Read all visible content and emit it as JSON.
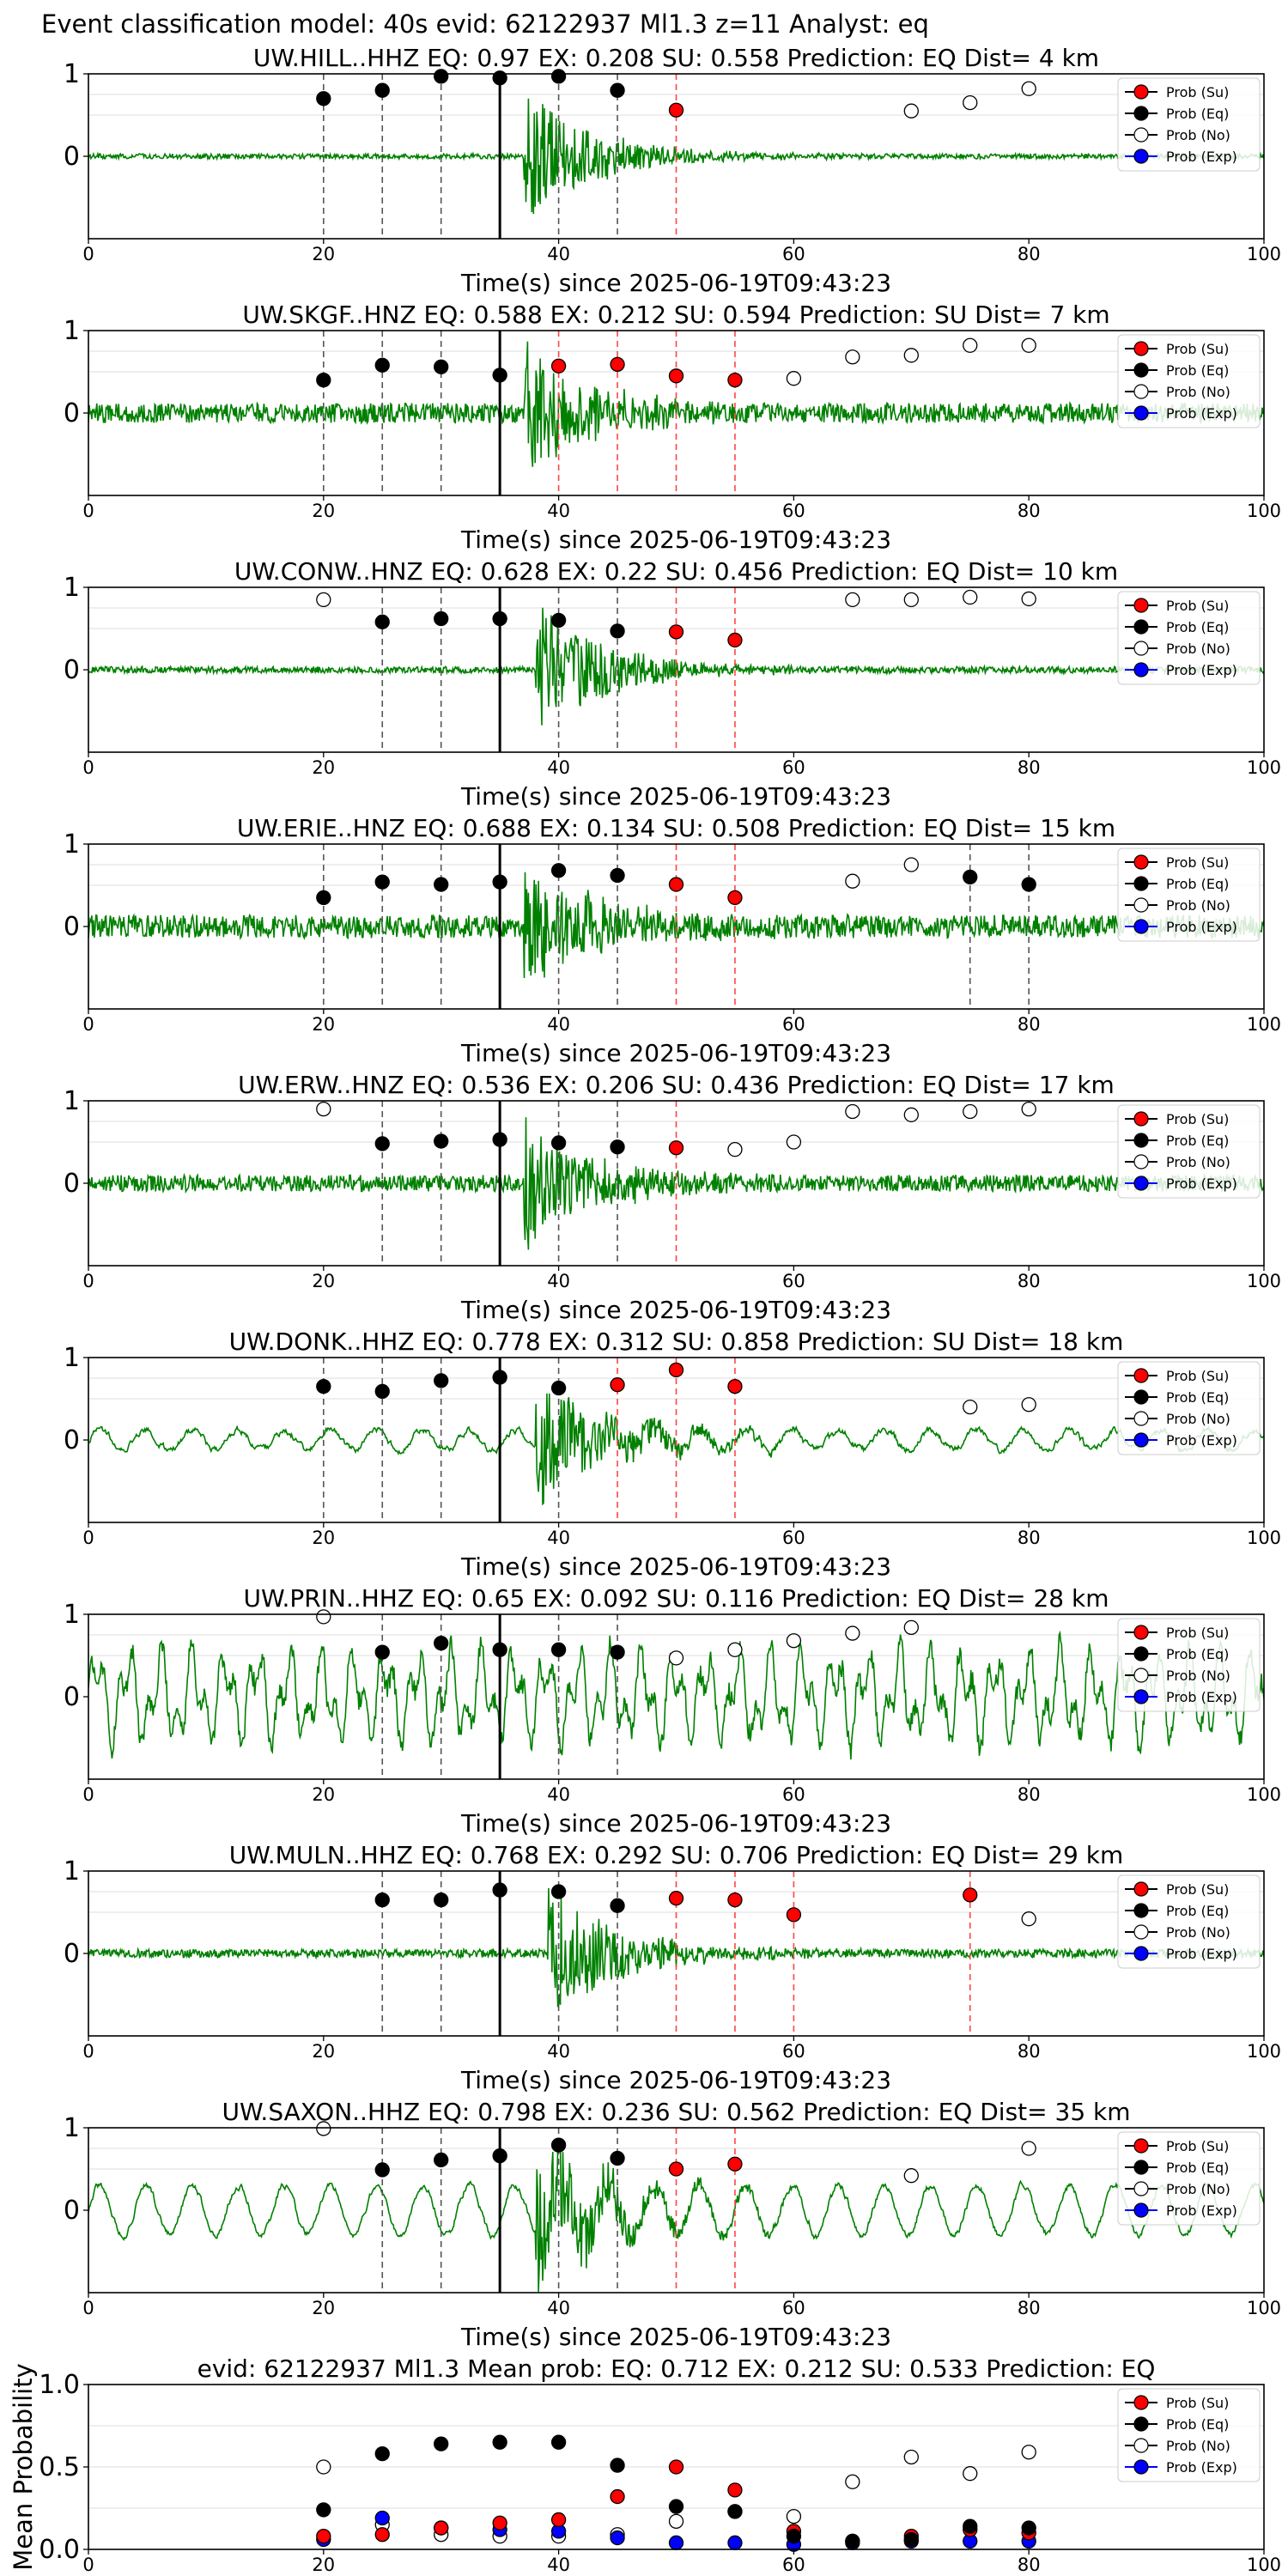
{
  "figure_title": "Event classification model: 40s evid: 62122937 Ml1.3 z=11 Analyst: eq",
  "legend": [
    "Prob (Su)",
    "Prob (Eq)",
    "Prob (No)",
    "Prob (Exp)"
  ],
  "colors": {
    "Su": "#ff0000",
    "Eq": "#000000",
    "No": "#ffffff",
    "Exp": "#0000ff",
    "waveform": "#008000"
  },
  "xlabel": "Time(s) since 2025-06-19T09:43:23",
  "chart_data": [
    {
      "type": "scatter",
      "title": "UW.HILL..HHZ   EQ: 0.97  EX: 0.208  SU: 0.558   Prediction: EQ    Dist= 4 km",
      "xlim": [
        0,
        100
      ],
      "ylim": [
        -1,
        1
      ],
      "xticks": [
        0,
        20,
        40,
        60,
        80,
        100
      ],
      "yticks": [
        0,
        1
      ],
      "waveform": {
        "amplitude": 0.03,
        "style": "quiet-burst",
        "event_start": 37
      },
      "event_line_x": 35,
      "points": {
        "Eq": [
          [
            20,
            0.7
          ],
          [
            25,
            0.8
          ],
          [
            30,
            0.97
          ],
          [
            35,
            0.95
          ],
          [
            40,
            0.97
          ],
          [
            45,
            0.8
          ]
        ],
        "Su": [
          [
            50,
            0.56
          ]
        ],
        "No": [
          [
            70,
            0.55
          ],
          [
            75,
            0.65
          ],
          [
            80,
            0.82
          ]
        ],
        "Exp": []
      },
      "eq_lines": [
        20,
        25,
        30,
        40,
        45
      ],
      "su_lines": [
        50
      ]
    },
    {
      "type": "scatter",
      "title": "UW.SKGF..HNZ   EQ: 0.588  EX: 0.212  SU: 0.594   Prediction: SU    Dist= 7 km",
      "xlim": [
        0,
        100
      ],
      "ylim": [
        -1,
        1
      ],
      "xticks": [
        0,
        20,
        40,
        60,
        80,
        100
      ],
      "yticks": [
        0,
        1
      ],
      "waveform": {
        "amplitude": 0.12,
        "style": "noisy-burst",
        "event_start": 37
      },
      "event_line_x": 35,
      "points": {
        "Eq": [
          [
            20,
            0.4
          ],
          [
            25,
            0.58
          ],
          [
            30,
            0.56
          ],
          [
            35,
            0.46
          ]
        ],
        "Su": [
          [
            40,
            0.57
          ],
          [
            45,
            0.59
          ],
          [
            50,
            0.45
          ],
          [
            55,
            0.4
          ]
        ],
        "No": [
          [
            60,
            0.42
          ],
          [
            65,
            0.68
          ],
          [
            70,
            0.7
          ],
          [
            75,
            0.82
          ],
          [
            80,
            0.82
          ]
        ],
        "Exp": []
      },
      "eq_lines": [
        20,
        25,
        30
      ],
      "su_lines": [
        40,
        45,
        50,
        55
      ]
    },
    {
      "type": "scatter",
      "title": "UW.CONW..HNZ   EQ: 0.628  EX: 0.22  SU: 0.456   Prediction: EQ    Dist= 10 km",
      "xlim": [
        0,
        100
      ],
      "ylim": [
        -1,
        1
      ],
      "xticks": [
        0,
        20,
        40,
        60,
        80,
        100
      ],
      "yticks": [
        0,
        1
      ],
      "waveform": {
        "amplitude": 0.04,
        "style": "quiet-burst",
        "event_start": 38
      },
      "event_line_x": 35,
      "points": {
        "Eq": [
          [
            25,
            0.58
          ],
          [
            30,
            0.62
          ],
          [
            35,
            0.62
          ],
          [
            40,
            0.6
          ],
          [
            45,
            0.47
          ]
        ],
        "Su": [
          [
            50,
            0.46
          ],
          [
            55,
            0.36
          ]
        ],
        "No": [
          [
            20,
            0.85
          ],
          [
            65,
            0.85
          ],
          [
            70,
            0.85
          ],
          [
            75,
            0.88
          ],
          [
            80,
            0.86
          ]
        ],
        "Exp": []
      },
      "eq_lines": [
        25,
        30,
        40,
        45
      ],
      "su_lines": [
        50,
        55
      ]
    },
    {
      "type": "scatter",
      "title": "UW.ERIE..HNZ   EQ: 0.688  EX: 0.134  SU: 0.508   Prediction: EQ    Dist= 15 km",
      "xlim": [
        0,
        100
      ],
      "ylim": [
        -1,
        1
      ],
      "xticks": [
        0,
        20,
        40,
        60,
        80,
        100
      ],
      "yticks": [
        0,
        1
      ],
      "waveform": {
        "amplitude": 0.14,
        "style": "noisy-burst",
        "event_start": 37
      },
      "event_line_x": 35,
      "points": {
        "Eq": [
          [
            20,
            0.35
          ],
          [
            25,
            0.54
          ],
          [
            30,
            0.51
          ],
          [
            35,
            0.54
          ],
          [
            40,
            0.68
          ],
          [
            45,
            0.62
          ],
          [
            75,
            0.6
          ],
          [
            80,
            0.51
          ]
        ],
        "Su": [
          [
            50,
            0.51
          ],
          [
            55,
            0.35
          ]
        ],
        "No": [
          [
            65,
            0.55
          ],
          [
            70,
            0.75
          ]
        ],
        "Exp": []
      },
      "eq_lines": [
        20,
        25,
        30,
        40,
        45,
        75,
        80
      ],
      "su_lines": [
        50,
        55
      ]
    },
    {
      "type": "scatter",
      "title": "UW.ERW..HNZ   EQ: 0.536  EX: 0.206  SU: 0.436   Prediction: EQ    Dist= 17 km",
      "xlim": [
        0,
        100
      ],
      "ylim": [
        -1,
        1
      ],
      "xticks": [
        0,
        20,
        40,
        60,
        80,
        100
      ],
      "yticks": [
        0,
        1
      ],
      "waveform": {
        "amplitude": 0.1,
        "style": "noisy-burst",
        "event_start": 37
      },
      "event_line_x": 35,
      "points": {
        "Eq": [
          [
            25,
            0.48
          ],
          [
            30,
            0.51
          ],
          [
            35,
            0.53
          ],
          [
            40,
            0.49
          ],
          [
            45,
            0.44
          ]
        ],
        "Su": [
          [
            50,
            0.43
          ]
        ],
        "No": [
          [
            20,
            0.9
          ],
          [
            55,
            0.41
          ],
          [
            60,
            0.5
          ],
          [
            65,
            0.87
          ],
          [
            70,
            0.83
          ],
          [
            75,
            0.87
          ],
          [
            80,
            0.9
          ]
        ],
        "Exp": []
      },
      "eq_lines": [
        25,
        30,
        40,
        45
      ],
      "su_lines": [
        50
      ]
    },
    {
      "type": "scatter",
      "title": "UW.DONK..HHZ   EQ: 0.778  EX: 0.312  SU: 0.858   Prediction: SU    Dist= 18 km",
      "xlim": [
        0,
        100
      ],
      "ylim": [
        -1,
        1
      ],
      "xticks": [
        0,
        20,
        40,
        60,
        80,
        100
      ],
      "yticks": [
        0,
        1
      ],
      "waveform": {
        "amplitude": 0.12,
        "style": "wavy-burst",
        "event_start": 38
      },
      "event_line_x": 35,
      "points": {
        "Eq": [
          [
            20,
            0.65
          ],
          [
            25,
            0.59
          ],
          [
            30,
            0.72
          ],
          [
            35,
            0.76
          ],
          [
            40,
            0.63
          ]
        ],
        "Su": [
          [
            45,
            0.67
          ],
          [
            50,
            0.85
          ],
          [
            55,
            0.65
          ]
        ],
        "No": [
          [
            75,
            0.4
          ],
          [
            80,
            0.43
          ]
        ],
        "Exp": []
      },
      "eq_lines": [
        20,
        25,
        30,
        40
      ],
      "su_lines": [
        45,
        50,
        55
      ]
    },
    {
      "type": "scatter",
      "title": "UW.PRIN..HHZ   EQ: 0.65  EX: 0.092  SU: 0.116   Prediction: EQ    Dist= 28 km",
      "xlim": [
        0,
        100
      ],
      "ylim": [
        -1,
        1
      ],
      "xticks": [
        0,
        20,
        40,
        60,
        80,
        100
      ],
      "yticks": [
        0,
        1
      ],
      "waveform": {
        "amplitude": 0.55,
        "style": "strong-wavy",
        "event_start": 0
      },
      "event_line_x": 35,
      "points": {
        "Eq": [
          [
            25,
            0.54
          ],
          [
            30,
            0.65
          ],
          [
            35,
            0.57
          ],
          [
            40,
            0.57
          ],
          [
            45,
            0.54
          ]
        ],
        "Su": [],
        "No": [
          [
            20,
            0.97
          ],
          [
            50,
            0.47
          ],
          [
            55,
            0.57
          ],
          [
            60,
            0.68
          ],
          [
            65,
            0.77
          ],
          [
            70,
            0.84
          ]
        ],
        "Exp": []
      },
      "eq_lines": [
        25,
        30,
        40,
        45
      ],
      "su_lines": []
    },
    {
      "type": "scatter",
      "title": "UW.MULN..HHZ   EQ: 0.768  EX: 0.292  SU: 0.706   Prediction: EQ    Dist= 29 km",
      "xlim": [
        0,
        100
      ],
      "ylim": [
        -1,
        1
      ],
      "xticks": [
        0,
        20,
        40,
        60,
        80,
        100
      ],
      "yticks": [
        0,
        1
      ],
      "waveform": {
        "amplitude": 0.05,
        "style": "quiet-burst",
        "event_start": 39
      },
      "event_line_x": 35,
      "points": {
        "Eq": [
          [
            25,
            0.65
          ],
          [
            30,
            0.65
          ],
          [
            35,
            0.77
          ],
          [
            40,
            0.75
          ],
          [
            45,
            0.58
          ]
        ],
        "Su": [
          [
            50,
            0.67
          ],
          [
            55,
            0.65
          ],
          [
            60,
            0.47
          ],
          [
            75,
            0.71
          ]
        ],
        "No": [
          [
            80,
            0.42
          ]
        ],
        "Exp": []
      },
      "eq_lines": [
        25,
        30,
        40,
        45
      ],
      "su_lines": [
        50,
        55,
        60,
        75
      ]
    },
    {
      "type": "scatter",
      "title": "UW.SAXON..HHZ   EQ: 0.798  EX: 0.236  SU: 0.562   Prediction: EQ    Dist= 35 km",
      "xlim": [
        0,
        100
      ],
      "ylim": [
        -1,
        1
      ],
      "xticks": [
        0,
        20,
        40,
        60,
        80,
        100
      ],
      "yticks": [
        0,
        1
      ],
      "waveform": {
        "amplitude": 0.3,
        "style": "wavy-burst",
        "event_start": 38
      },
      "event_line_x": 35,
      "points": {
        "Eq": [
          [
            25,
            0.49
          ],
          [
            30,
            0.61
          ],
          [
            35,
            0.66
          ],
          [
            40,
            0.79
          ],
          [
            45,
            0.63
          ]
        ],
        "Su": [
          [
            50,
            0.5
          ],
          [
            55,
            0.56
          ]
        ],
        "No": [
          [
            20,
            0.99
          ],
          [
            70,
            0.42
          ],
          [
            80,
            0.75
          ]
        ],
        "Exp": []
      },
      "eq_lines": [
        25,
        30,
        40,
        45
      ],
      "su_lines": [
        50,
        55
      ]
    },
    {
      "type": "scatter",
      "title": "evid: 62122937  Ml1.3   Mean prob:    EQ: 0.712  EX: 0.212  SU: 0.533   Prediction: EQ",
      "xlim": [
        0,
        100
      ],
      "ylim": [
        0,
        1
      ],
      "xticks": [
        0,
        20,
        40,
        60,
        80,
        100
      ],
      "yticks": [
        0.0,
        0.5,
        1.0
      ],
      "ylabel": "Mean Probability",
      "waveform": null,
      "event_line_x": null,
      "points": {
        "Eq": [
          [
            20,
            0.24
          ],
          [
            25,
            0.58
          ],
          [
            30,
            0.64
          ],
          [
            35,
            0.65
          ],
          [
            40,
            0.65
          ],
          [
            45,
            0.51
          ],
          [
            50,
            0.26
          ],
          [
            55,
            0.23
          ],
          [
            60,
            0.08
          ],
          [
            65,
            0.05
          ],
          [
            70,
            0.06
          ],
          [
            75,
            0.14
          ],
          [
            80,
            0.13
          ]
        ],
        "Su": [
          [
            20,
            0.08
          ],
          [
            25,
            0.09
          ],
          [
            30,
            0.13
          ],
          [
            35,
            0.16
          ],
          [
            40,
            0.18
          ],
          [
            45,
            0.32
          ],
          [
            50,
            0.5
          ],
          [
            55,
            0.36
          ],
          [
            60,
            0.11
          ],
          [
            65,
            0.05
          ],
          [
            70,
            0.08
          ],
          [
            75,
            0.12
          ],
          [
            80,
            0.1
          ]
        ],
        "No": [
          [
            20,
            0.5
          ],
          [
            25,
            0.15
          ],
          [
            30,
            0.09
          ],
          [
            35,
            0.08
          ],
          [
            40,
            0.08
          ],
          [
            45,
            0.09
          ],
          [
            50,
            0.17
          ],
          [
            55,
            0.23
          ],
          [
            60,
            0.2
          ],
          [
            65,
            0.41
          ],
          [
            70,
            0.56
          ],
          [
            75,
            0.46
          ],
          [
            80,
            0.59
          ]
        ],
        "Exp": [
          [
            20,
            0.06
          ],
          [
            25,
            0.19
          ],
          [
            30,
            0.13
          ],
          [
            35,
            0.12
          ],
          [
            40,
            0.11
          ],
          [
            45,
            0.07
          ],
          [
            50,
            0.04
          ],
          [
            55,
            0.04
          ],
          [
            60,
            0.03
          ],
          [
            65,
            0.04
          ],
          [
            70,
            0.05
          ],
          [
            75,
            0.05
          ],
          [
            80,
            0.05
          ]
        ]
      },
      "eq_lines": [],
      "su_lines": []
    }
  ]
}
